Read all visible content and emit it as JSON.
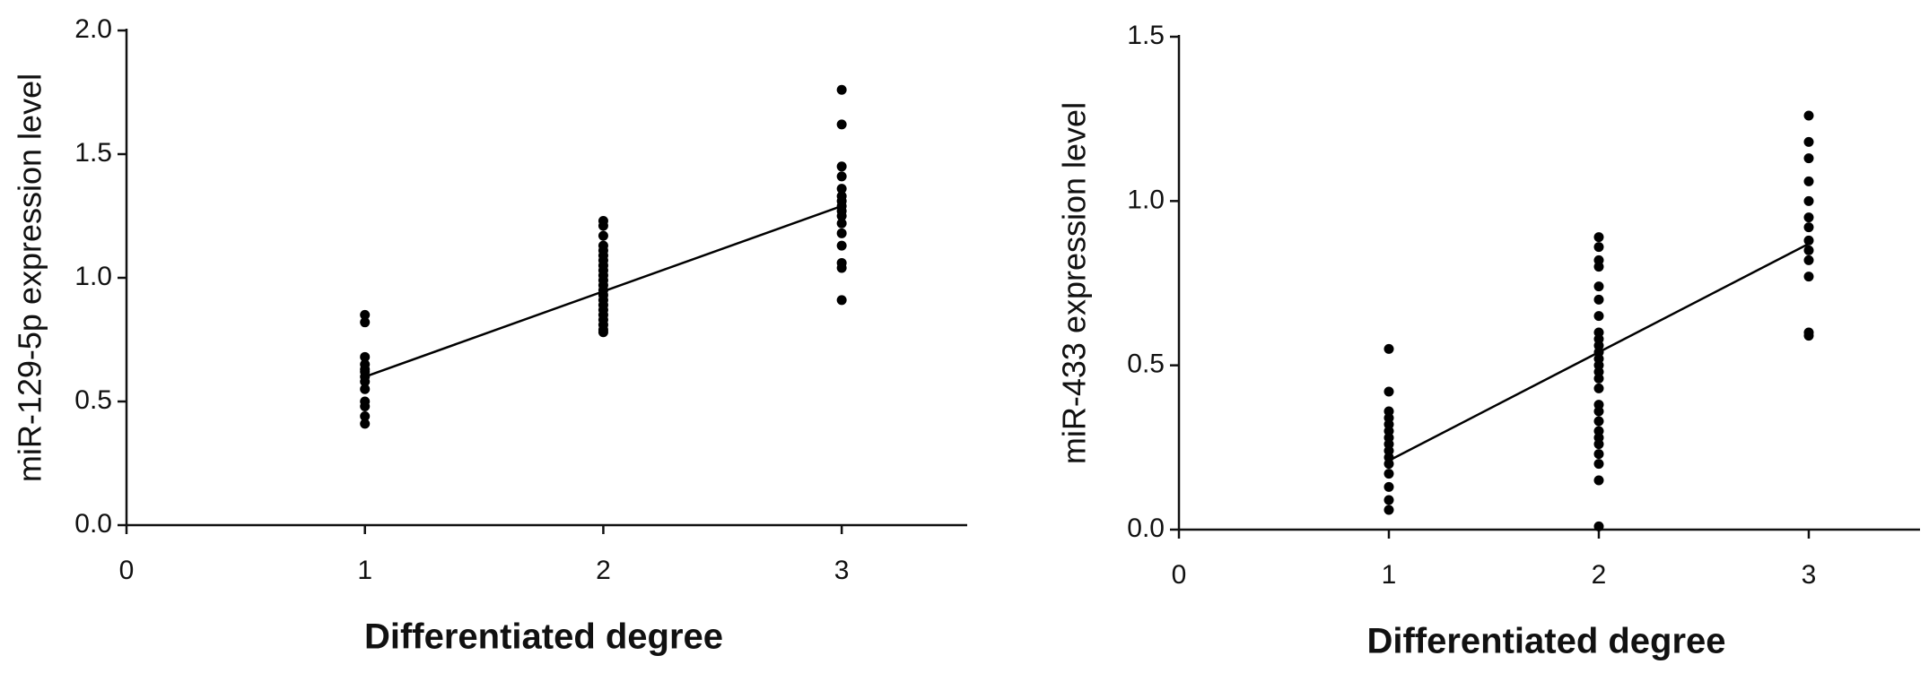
{
  "chart_data": [
    {
      "type": "scatter",
      "x_label": "Differentiated degree",
      "y_label": "miR-129-5p expression level",
      "xlim": [
        0,
        3.5
      ],
      "xticks": [
        0,
        1,
        2,
        3
      ],
      "ylim": [
        0,
        2
      ],
      "yticks": [
        {
          "value": 0,
          "label": "0.0"
        },
        0.5,
        {
          "value": 1,
          "label": "1.0"
        },
        1.5,
        {
          "value": 2,
          "label": "2.0"
        }
      ],
      "series": [
        {
          "color": "#000000",
          "x": [
            1,
            1,
            1,
            1,
            1,
            1,
            1,
            1,
            1,
            1,
            1,
            1,
            1,
            2,
            2,
            2,
            2,
            2,
            2,
            2,
            2,
            2,
            2,
            2,
            2,
            2,
            2,
            2,
            2,
            2,
            2,
            2,
            2,
            2,
            2,
            3,
            3,
            3,
            3,
            3,
            3,
            3,
            3,
            3,
            3,
            3,
            3,
            3,
            3,
            3,
            3
          ],
          "values": [
            0.85,
            0.82,
            0.68,
            0.65,
            0.63,
            0.62,
            0.6,
            0.58,
            0.55,
            0.5,
            0.48,
            0.44,
            0.41,
            1.23,
            1.21,
            1.17,
            1.13,
            1.11,
            1.09,
            1.07,
            1.05,
            1.03,
            1.01,
            0.99,
            0.97,
            0.95,
            0.93,
            0.91,
            0.89,
            0.87,
            0.85,
            0.83,
            0.81,
            0.79,
            0.78,
            1.76,
            1.62,
            1.45,
            1.41,
            1.36,
            1.33,
            1.31,
            1.29,
            1.27,
            1.25,
            1.22,
            1.18,
            1.13,
            1.06,
            1.04,
            0.91
          ]
        }
      ],
      "trend": {
        "color": "#000000",
        "x": [
          1,
          3
        ],
        "values": [
          0.6,
          1.29
        ]
      }
    },
    {
      "type": "scatter",
      "x_label": "Differentiated degree",
      "y_label": "miR-433 expression level",
      "xlim": [
        0,
        3.5
      ],
      "xticks": [
        0,
        1,
        2,
        3
      ],
      "ylim": [
        0,
        1.5
      ],
      "yticks": [
        {
          "value": 0,
          "label": "0.0"
        },
        0.5,
        {
          "value": 1,
          "label": "1.0"
        },
        1.5
      ],
      "series": [
        {
          "color": "#000000",
          "x": [
            1,
            1,
            1,
            1,
            1,
            1,
            1,
            1,
            1,
            1,
            1,
            1,
            1,
            1,
            1,
            2,
            2,
            2,
            2,
            2,
            2,
            2,
            2,
            2,
            2,
            2,
            2,
            2,
            2,
            2,
            2,
            2,
            2,
            2,
            2,
            2,
            2,
            2,
            2,
            2,
            2,
            3,
            3,
            3,
            3,
            3,
            3,
            3,
            3,
            3,
            3,
            3,
            3,
            3
          ],
          "values": [
            0.55,
            0.42,
            0.36,
            0.34,
            0.32,
            0.3,
            0.28,
            0.26,
            0.24,
            0.22,
            0.2,
            0.17,
            0.13,
            0.09,
            0.06,
            0.89,
            0.86,
            0.82,
            0.8,
            0.74,
            0.7,
            0.65,
            0.6,
            0.58,
            0.56,
            0.54,
            0.52,
            0.5,
            0.48,
            0.46,
            0.43,
            0.38,
            0.36,
            0.33,
            0.3,
            0.28,
            0.26,
            0.23,
            0.2,
            0.15,
            0.01,
            1.26,
            1.18,
            1.13,
            1.06,
            1.0,
            0.95,
            0.92,
            0.88,
            0.85,
            0.82,
            0.77,
            0.6,
            0.59
          ]
        }
      ],
      "trend": {
        "color": "#000000",
        "x": [
          1,
          3
        ],
        "values": [
          0.21,
          0.87
        ]
      }
    }
  ]
}
